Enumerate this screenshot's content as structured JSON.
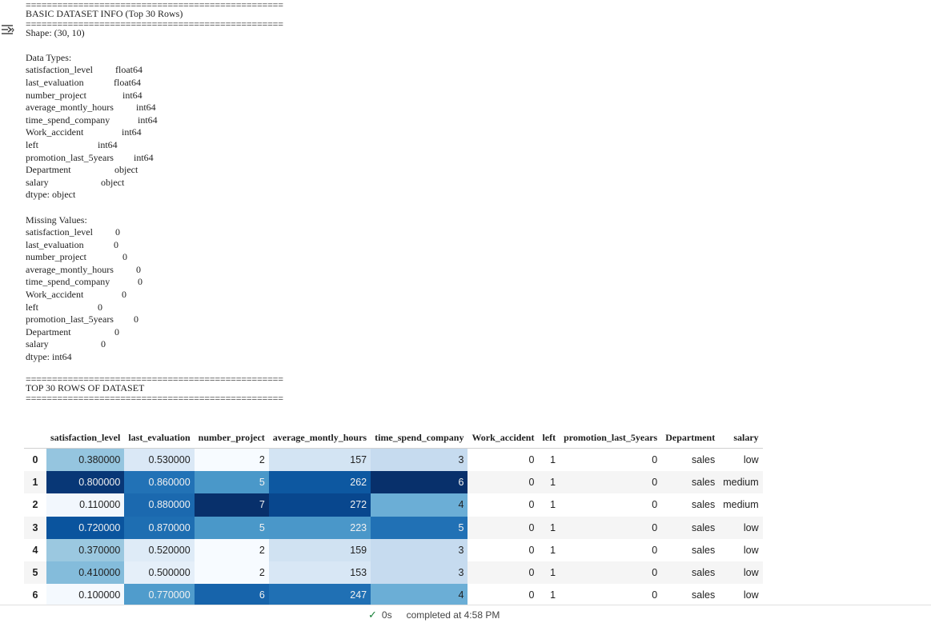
{
  "separator": "=================================================",
  "title": "BASIC DATASET INFO (Top 30 Rows)",
  "shape_line": "Shape: (30, 10)",
  "dtypes_header": "Data Types:",
  "dtypes": [
    {
      "name": "satisfaction_level",
      "value": "float64"
    },
    {
      "name": "last_evaluation",
      "value": "float64"
    },
    {
      "name": "number_project",
      "value": "int64"
    },
    {
      "name": "average_montly_hours",
      "value": "int64"
    },
    {
      "name": "time_spend_company",
      "value": "int64"
    },
    {
      "name": "Work_accident",
      "value": "int64"
    },
    {
      "name": "left",
      "value": "int64"
    },
    {
      "name": "promotion_last_5years",
      "value": "int64"
    },
    {
      "name": "Department",
      "value": "object"
    },
    {
      "name": "salary",
      "value": "object"
    }
  ],
  "dtypes_footer": "dtype: object",
  "missing_header": "Missing Values:",
  "missing": [
    {
      "name": "satisfaction_level",
      "value": "0"
    },
    {
      "name": "last_evaluation",
      "value": "0"
    },
    {
      "name": "number_project",
      "value": "0"
    },
    {
      "name": "average_montly_hours",
      "value": "0"
    },
    {
      "name": "time_spend_company",
      "value": "0"
    },
    {
      "name": "Work_accident",
      "value": "0"
    },
    {
      "name": "left",
      "value": "0"
    },
    {
      "name": "promotion_last_5years",
      "value": "0"
    },
    {
      "name": "Department",
      "value": "0"
    },
    {
      "name": "salary",
      "value": "0"
    }
  ],
  "missing_footer": "dtype: int64",
  "top_title": "TOP 30 ROWS OF DATASET",
  "table": {
    "columns": [
      "satisfaction_level",
      "last_evaluation",
      "number_project",
      "average_montly_hours",
      "time_spend_company",
      "Work_accident",
      "left",
      "promotion_last_5years",
      "Department",
      "salary"
    ],
    "rows": [
      {
        "index": "0",
        "cells": [
          "0.380000",
          "0.530000",
          "2",
          "157",
          "3",
          "0",
          "1",
          "0",
          "sales",
          "low"
        ]
      },
      {
        "index": "1",
        "cells": [
          "0.800000",
          "0.860000",
          "5",
          "262",
          "6",
          "0",
          "1",
          "0",
          "sales",
          "medium"
        ]
      },
      {
        "index": "2",
        "cells": [
          "0.110000",
          "0.880000",
          "7",
          "272",
          "4",
          "0",
          "1",
          "0",
          "sales",
          "medium"
        ]
      },
      {
        "index": "3",
        "cells": [
          "0.720000",
          "0.870000",
          "5",
          "223",
          "5",
          "0",
          "1",
          "0",
          "sales",
          "low"
        ]
      },
      {
        "index": "4",
        "cells": [
          "0.370000",
          "0.520000",
          "2",
          "159",
          "3",
          "0",
          "1",
          "0",
          "sales",
          "low"
        ]
      },
      {
        "index": "5",
        "cells": [
          "0.410000",
          "0.500000",
          "2",
          "153",
          "3",
          "0",
          "1",
          "0",
          "sales",
          "low"
        ]
      },
      {
        "index": "6",
        "cells": [
          "0.100000",
          "0.770000",
          "6",
          "247",
          "4",
          "0",
          "1",
          "0",
          "sales",
          "low"
        ]
      }
    ],
    "gradient_colors": [
      "#f7fbff",
      "#08306b"
    ]
  },
  "status": {
    "duration": "0s",
    "message": "completed at 4:58 PM"
  }
}
